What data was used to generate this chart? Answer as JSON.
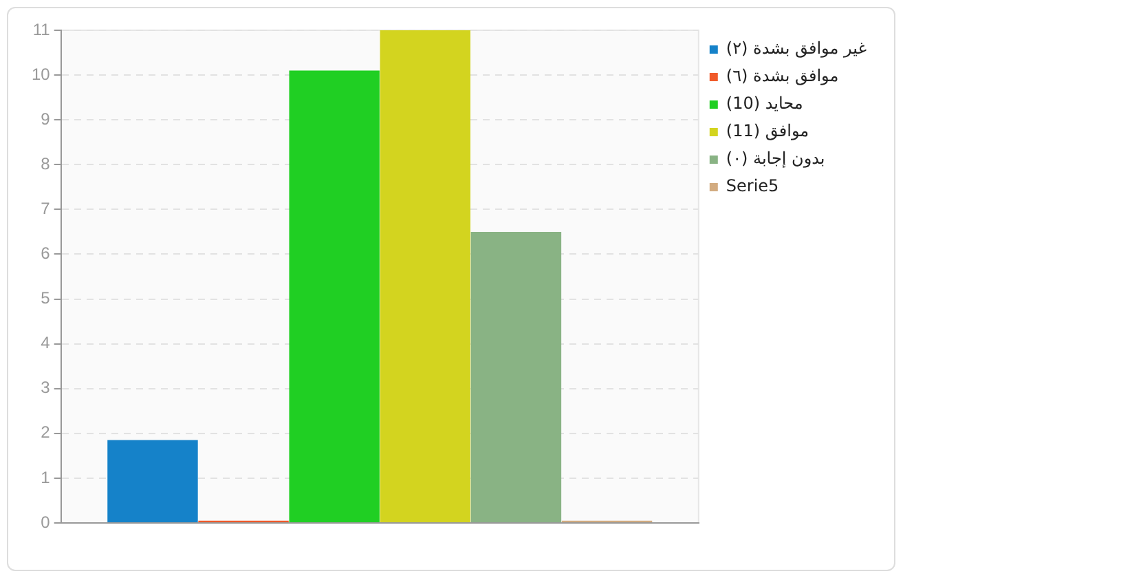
{
  "chart_data": {
    "type": "bar",
    "categories": [
      null
    ],
    "series": [
      {
        "name": "غير موافق بشدة (٢)",
        "color": "#1582c9",
        "values": [
          1.85
        ]
      },
      {
        "name": "موافق بشدة (٦)",
        "color": "#f05a2a",
        "values": [
          0.05
        ]
      },
      {
        "name": "محايد (10)",
        "color": "#20cf23",
        "values": [
          10.1
        ]
      },
      {
        "name": "موافق (11)",
        "color": "#d3d41f",
        "values": [
          11
        ]
      },
      {
        "name": "بدون إجابة (٠)",
        "color": "#89b384",
        "values": [
          6.5
        ]
      },
      {
        "name": "Serie5",
        "color": "#d2ab80",
        "values": [
          0.05
        ]
      }
    ],
    "ylim": [
      0,
      11
    ],
    "yticks": [
      0,
      1,
      2,
      3,
      4,
      5,
      6,
      7,
      8,
      9,
      10,
      11
    ],
    "grid": "y",
    "legend": "right"
  }
}
